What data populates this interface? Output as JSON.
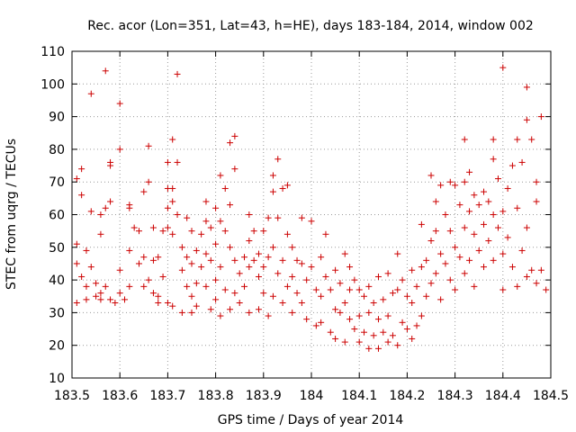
{
  "chart_data": {
    "type": "scatter",
    "title": "Rec. acor (Lon=351, Lat=43, h=HE), days 183-184, 2014, window 002",
    "xlabel": "GPS time / Days of year 2014",
    "ylabel": "STEC from uqrg / TECUs",
    "xlim": [
      183.5,
      184.5
    ],
    "ylim": [
      10,
      110
    ],
    "x_ticks": [
      "183.5",
      "183.6",
      "183.7",
      "183.8",
      "183.9",
      "184",
      "184.1",
      "184.2",
      "184.3",
      "184.4",
      "184.5"
    ],
    "y_ticks": [
      "10",
      "20",
      "30",
      "40",
      "50",
      "60",
      "70",
      "80",
      "90",
      "100",
      "110"
    ],
    "grid": true,
    "marker": "+",
    "color": "#cc0000",
    "series": [
      {
        "name": "STEC",
        "points": [
          [
            183.51,
            33
          ],
          [
            183.51,
            45
          ],
          [
            183.51,
            51
          ],
          [
            183.51,
            71
          ],
          [
            183.52,
            66
          ],
          [
            183.52,
            74
          ],
          [
            183.52,
            41
          ],
          [
            183.53,
            49
          ],
          [
            183.53,
            38
          ],
          [
            183.53,
            34
          ],
          [
            183.54,
            97
          ],
          [
            183.54,
            61
          ],
          [
            183.54,
            44
          ],
          [
            183.55,
            39
          ],
          [
            183.55,
            35
          ],
          [
            183.56,
            60
          ],
          [
            183.56,
            34
          ],
          [
            183.56,
            36
          ],
          [
            183.56,
            54
          ],
          [
            183.57,
            62
          ],
          [
            183.57,
            38
          ],
          [
            183.57,
            104
          ],
          [
            183.58,
            76
          ],
          [
            183.58,
            75
          ],
          [
            183.58,
            64
          ],
          [
            183.58,
            34
          ],
          [
            183.59,
            33
          ],
          [
            183.6,
            94
          ],
          [
            183.6,
            80
          ],
          [
            183.6,
            43
          ],
          [
            183.6,
            36
          ],
          [
            183.61,
            34
          ],
          [
            183.62,
            63
          ],
          [
            183.62,
            62
          ],
          [
            183.62,
            49
          ],
          [
            183.62,
            38
          ],
          [
            183.63,
            56
          ],
          [
            183.64,
            55
          ],
          [
            183.64,
            45
          ],
          [
            183.65,
            67
          ],
          [
            183.65,
            47
          ],
          [
            183.65,
            38
          ],
          [
            183.66,
            81
          ],
          [
            183.66,
            70
          ],
          [
            183.66,
            40
          ],
          [
            183.67,
            56
          ],
          [
            183.67,
            46
          ],
          [
            183.67,
            36
          ],
          [
            183.68,
            47
          ],
          [
            183.68,
            35
          ],
          [
            183.68,
            33
          ],
          [
            183.69,
            55
          ],
          [
            183.69,
            41
          ],
          [
            183.7,
            76
          ],
          [
            183.7,
            68
          ],
          [
            183.7,
            62
          ],
          [
            183.7,
            56
          ],
          [
            183.7,
            33
          ],
          [
            183.71,
            83
          ],
          [
            183.71,
            68
          ],
          [
            183.71,
            64
          ],
          [
            183.71,
            54
          ],
          [
            183.71,
            32
          ],
          [
            183.72,
            103
          ],
          [
            183.72,
            76
          ],
          [
            183.72,
            60
          ],
          [
            183.73,
            50
          ],
          [
            183.73,
            43
          ],
          [
            183.73,
            30
          ],
          [
            183.74,
            59
          ],
          [
            183.74,
            47
          ],
          [
            183.74,
            38
          ],
          [
            183.75,
            55
          ],
          [
            183.75,
            45
          ],
          [
            183.75,
            35
          ],
          [
            183.75,
            30
          ],
          [
            183.76,
            49
          ],
          [
            183.76,
            39
          ],
          [
            183.76,
            32
          ],
          [
            183.77,
            54
          ],
          [
            183.77,
            44
          ],
          [
            183.78,
            64
          ],
          [
            183.78,
            58
          ],
          [
            183.78,
            48
          ],
          [
            183.78,
            38
          ],
          [
            183.79,
            56
          ],
          [
            183.79,
            46
          ],
          [
            183.79,
            31
          ],
          [
            183.8,
            62
          ],
          [
            183.8,
            51
          ],
          [
            183.8,
            40
          ],
          [
            183.8,
            34
          ],
          [
            183.81,
            72
          ],
          [
            183.81,
            58
          ],
          [
            183.81,
            44
          ],
          [
            183.81,
            29
          ],
          [
            183.82,
            68
          ],
          [
            183.82,
            55
          ],
          [
            183.82,
            37
          ],
          [
            183.83,
            82
          ],
          [
            183.83,
            63
          ],
          [
            183.83,
            50
          ],
          [
            183.83,
            31
          ],
          [
            183.84,
            84
          ],
          [
            183.84,
            74
          ],
          [
            183.84,
            46
          ],
          [
            183.84,
            36
          ],
          [
            183.85,
            42
          ],
          [
            183.85,
            33
          ],
          [
            183.86,
            47
          ],
          [
            183.86,
            38
          ],
          [
            183.87,
            60
          ],
          [
            183.87,
            52
          ],
          [
            183.87,
            44
          ],
          [
            183.87,
            30
          ],
          [
            183.88,
            55
          ],
          [
            183.88,
            46
          ],
          [
            183.89,
            48
          ],
          [
            183.89,
            41
          ],
          [
            183.89,
            31
          ],
          [
            183.9,
            55
          ],
          [
            183.9,
            44
          ],
          [
            183.9,
            36
          ],
          [
            183.91,
            59
          ],
          [
            183.91,
            47
          ],
          [
            183.91,
            29
          ],
          [
            183.92,
            72
          ],
          [
            183.92,
            67
          ],
          [
            183.92,
            50
          ],
          [
            183.92,
            35
          ],
          [
            183.93,
            77
          ],
          [
            183.93,
            59
          ],
          [
            183.93,
            42
          ],
          [
            183.94,
            68
          ],
          [
            183.94,
            46
          ],
          [
            183.94,
            33
          ],
          [
            183.95,
            69
          ],
          [
            183.95,
            54
          ],
          [
            183.95,
            38
          ],
          [
            183.96,
            50
          ],
          [
            183.96,
            41
          ],
          [
            183.96,
            30
          ],
          [
            183.97,
            46
          ],
          [
            183.97,
            36
          ],
          [
            183.98,
            59
          ],
          [
            183.98,
            45
          ],
          [
            183.98,
            33
          ],
          [
            183.99,
            40
          ],
          [
            183.99,
            28
          ],
          [
            184.0,
            58
          ],
          [
            184.0,
            44
          ],
          [
            184.01,
            37
          ],
          [
            184.01,
            26
          ],
          [
            184.02,
            47
          ],
          [
            184.02,
            35
          ],
          [
            184.02,
            27
          ],
          [
            184.03,
            54
          ],
          [
            184.03,
            41
          ],
          [
            184.04,
            37
          ],
          [
            184.04,
            24
          ],
          [
            184.05,
            43
          ],
          [
            184.05,
            31
          ],
          [
            184.05,
            22
          ],
          [
            184.06,
            39
          ],
          [
            184.06,
            30
          ],
          [
            184.07,
            48
          ],
          [
            184.07,
            33
          ],
          [
            184.07,
            21
          ],
          [
            184.08,
            44
          ],
          [
            184.08,
            37
          ],
          [
            184.08,
            28
          ],
          [
            184.09,
            40
          ],
          [
            184.09,
            25
          ],
          [
            184.1,
            37
          ],
          [
            184.1,
            29
          ],
          [
            184.1,
            21
          ],
          [
            184.11,
            35
          ],
          [
            184.11,
            24
          ],
          [
            184.12,
            38
          ],
          [
            184.12,
            30
          ],
          [
            184.12,
            19
          ],
          [
            184.13,
            33
          ],
          [
            184.13,
            23
          ],
          [
            184.14,
            41
          ],
          [
            184.14,
            28
          ],
          [
            184.14,
            19
          ],
          [
            184.15,
            34
          ],
          [
            184.15,
            24
          ],
          [
            184.16,
            42
          ],
          [
            184.16,
            29
          ],
          [
            184.16,
            21
          ],
          [
            184.17,
            36
          ],
          [
            184.17,
            23
          ],
          [
            184.18,
            48
          ],
          [
            184.18,
            37
          ],
          [
            184.18,
            20
          ],
          [
            184.19,
            40
          ],
          [
            184.19,
            27
          ],
          [
            184.2,
            35
          ],
          [
            184.2,
            25
          ],
          [
            184.21,
            43
          ],
          [
            184.21,
            33
          ],
          [
            184.21,
            22
          ],
          [
            184.22,
            38
          ],
          [
            184.22,
            26
          ],
          [
            184.23,
            57
          ],
          [
            184.23,
            44
          ],
          [
            184.23,
            29
          ],
          [
            184.24,
            46
          ],
          [
            184.24,
            35
          ],
          [
            184.25,
            72
          ],
          [
            184.25,
            52
          ],
          [
            184.25,
            39
          ],
          [
            184.26,
            64
          ],
          [
            184.26,
            55
          ],
          [
            184.26,
            42
          ],
          [
            184.27,
            69
          ],
          [
            184.27,
            48
          ],
          [
            184.27,
            34
          ],
          [
            184.28,
            60
          ],
          [
            184.28,
            45
          ],
          [
            184.29,
            70
          ],
          [
            184.29,
            55
          ],
          [
            184.29,
            40
          ],
          [
            184.3,
            69
          ],
          [
            184.3,
            50
          ],
          [
            184.3,
            37
          ],
          [
            184.31,
            63
          ],
          [
            184.31,
            47
          ],
          [
            184.32,
            83
          ],
          [
            184.32,
            70
          ],
          [
            184.32,
            56
          ],
          [
            184.32,
            42
          ],
          [
            184.33,
            73
          ],
          [
            184.33,
            61
          ],
          [
            184.33,
            46
          ],
          [
            184.34,
            66
          ],
          [
            184.34,
            54
          ],
          [
            184.34,
            38
          ],
          [
            184.35,
            63
          ],
          [
            184.35,
            49
          ],
          [
            184.36,
            67
          ],
          [
            184.36,
            57
          ],
          [
            184.36,
            44
          ],
          [
            184.37,
            64
          ],
          [
            184.37,
            52
          ],
          [
            184.38,
            83
          ],
          [
            184.38,
            77
          ],
          [
            184.38,
            60
          ],
          [
            184.38,
            46
          ],
          [
            184.39,
            71
          ],
          [
            184.39,
            56
          ],
          [
            184.4,
            105
          ],
          [
            184.4,
            61
          ],
          [
            184.4,
            48
          ],
          [
            184.4,
            37
          ],
          [
            184.41,
            68
          ],
          [
            184.41,
            53
          ],
          [
            184.42,
            75
          ],
          [
            184.42,
            44
          ],
          [
            184.43,
            83
          ],
          [
            184.43,
            62
          ],
          [
            184.43,
            38
          ],
          [
            184.44,
            76
          ],
          [
            184.44,
            49
          ],
          [
            184.45,
            99
          ],
          [
            184.45,
            89
          ],
          [
            184.45,
            56
          ],
          [
            184.45,
            41
          ],
          [
            184.46,
            83
          ],
          [
            184.46,
            43
          ],
          [
            184.47,
            70
          ],
          [
            184.47,
            64
          ],
          [
            184.47,
            39
          ],
          [
            184.48,
            90
          ],
          [
            184.48,
            43
          ],
          [
            184.49,
            37
          ]
        ]
      }
    ]
  }
}
